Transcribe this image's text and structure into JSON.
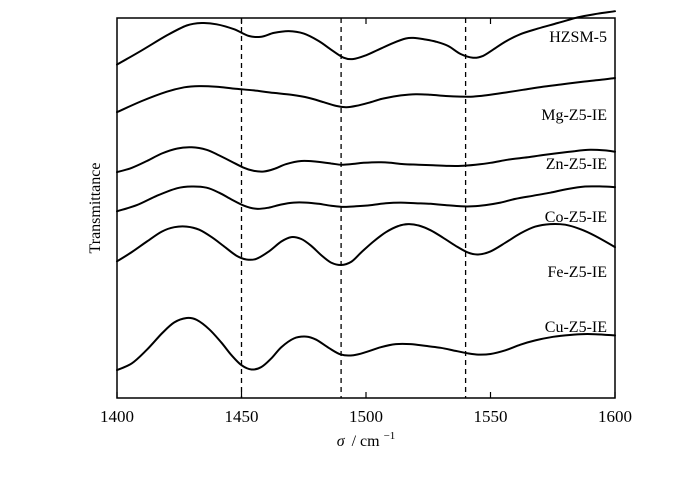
{
  "chart_data": {
    "type": "line",
    "title": "",
    "xlabel_symbol": "σ",
    "xlabel_unit": "/ cm",
    "xlabel_exponent": "−1",
    "ylabel": "Transmittance",
    "xlim": [
      1400,
      1600
    ],
    "xticks": [
      1400,
      1450,
      1500,
      1550,
      1600
    ],
    "xtick_labels": [
      "1400",
      "1450",
      "1500",
      "1550",
      "1600"
    ],
    "reference_lines_x": [
      1450,
      1490,
      1540
    ],
    "grid": false,
    "legend": "labels placed beside each curve at the right",
    "series": [
      {
        "name": "HZSM-5",
        "x": [
          1400,
          1410,
          1420,
          1428,
          1434,
          1440,
          1447,
          1453,
          1458,
          1463,
          1469,
          1475,
          1481,
          1486,
          1491,
          1495,
          1500,
          1505,
          1511,
          1516,
          1519,
          1523,
          1528,
          1533,
          1538,
          1543,
          1547,
          1551,
          1556,
          1562,
          1569,
          1577,
          1585,
          1593,
          1600
        ],
        "y": [
          1.2,
          3.5,
          5.9,
          7.5,
          7.9,
          7.7,
          6.9,
          5.8,
          5.7,
          6.3,
          6.6,
          6.2,
          5.0,
          3.6,
          2.3,
          2.1,
          2.7,
          3.6,
          4.7,
          5.4,
          5.5,
          5.3,
          4.9,
          4.2,
          2.9,
          2.3,
          2.6,
          3.6,
          4.9,
          6.1,
          7.0,
          7.9,
          8.8,
          9.4,
          9.8
        ]
      },
      {
        "name": "Mg-Z5-IE",
        "x": [
          1400,
          1410,
          1420,
          1427,
          1433,
          1440,
          1447,
          1455,
          1463,
          1470,
          1477,
          1483,
          1488,
          1492,
          1496,
          1501,
          1507,
          1514,
          1520,
          1526,
          1532,
          1538,
          1543,
          1548,
          1555,
          1563,
          1571,
          1579,
          1587,
          1594,
          1600
        ],
        "y": [
          0.3,
          2.1,
          3.6,
          4.3,
          4.5,
          4.4,
          4.1,
          3.8,
          3.4,
          3.1,
          2.6,
          1.9,
          1.3,
          1.1,
          1.3,
          1.8,
          2.5,
          3.0,
          3.2,
          3.1,
          2.9,
          2.8,
          2.8,
          3.0,
          3.4,
          3.9,
          4.4,
          4.8,
          5.2,
          5.5,
          5.8
        ]
      },
      {
        "name": "Zn-Z5-IE",
        "x": [
          1400,
          1406,
          1412,
          1418,
          1424,
          1430,
          1436,
          1441,
          1446,
          1451,
          1455,
          1459,
          1463,
          1468,
          1474,
          1480,
          1486,
          1490,
          1494,
          1499,
          1505,
          1510,
          1515,
          1521,
          1527,
          1533,
          1538,
          1544,
          1550,
          1557,
          1565,
          1572,
          1578,
          1584,
          1590,
          1596,
          1600
        ],
        "y": [
          0.3,
          1.0,
          2.1,
          3.3,
          4.1,
          4.3,
          3.9,
          3.0,
          2.0,
          1.0,
          0.5,
          0.4,
          0.8,
          1.6,
          2.1,
          2.0,
          1.7,
          1.5,
          1.6,
          1.8,
          1.9,
          1.8,
          1.6,
          1.5,
          1.4,
          1.3,
          1.3,
          1.5,
          1.8,
          2.3,
          2.7,
          3.1,
          3.4,
          3.7,
          3.9,
          3.8,
          3.6
        ]
      },
      {
        "name": "Co-Z5-IE",
        "x": [
          1400,
          1408,
          1416,
          1424,
          1430,
          1436,
          1441,
          1446,
          1451,
          1456,
          1461,
          1466,
          1471,
          1476,
          1481,
          1486,
          1491,
          1496,
          1502,
          1508,
          1514,
          1520,
          1526,
          1532,
          1538,
          1543,
          1548,
          1554,
          1560,
          1567,
          1574,
          1581,
          1588,
          1595,
          1600
        ],
        "y": [
          0.6,
          1.6,
          3.1,
          4.3,
          4.6,
          4.4,
          3.6,
          2.5,
          1.5,
          1.0,
          1.2,
          1.7,
          2.0,
          2.0,
          1.8,
          1.5,
          1.3,
          1.4,
          1.6,
          1.9,
          2.0,
          1.9,
          1.8,
          1.6,
          1.4,
          1.4,
          1.6,
          2.0,
          2.6,
          3.1,
          3.6,
          4.2,
          4.6,
          4.6,
          4.5
        ]
      },
      {
        "name": "Fe-Z5-IE",
        "x": [
          1400,
          1406,
          1412,
          1418,
          1423,
          1428,
          1433,
          1438,
          1443,
          1448,
          1452,
          1456,
          1461,
          1466,
          1470,
          1474,
          1478,
          1482,
          1486,
          1490,
          1494,
          1498,
          1503,
          1508,
          1513,
          1517,
          1521,
          1526,
          1531,
          1536,
          1541,
          1545,
          1550,
          1556,
          1562,
          1568,
          1574,
          1580,
          1586,
          1592,
          1600
        ],
        "y": [
          1.4,
          2.9,
          4.6,
          6.2,
          6.9,
          7.0,
          6.5,
          5.3,
          3.8,
          2.3,
          1.7,
          1.8,
          3.0,
          4.6,
          5.3,
          5.0,
          3.9,
          2.4,
          1.2,
          0.8,
          1.3,
          2.8,
          4.6,
          6.1,
          7.1,
          7.4,
          7.2,
          6.4,
          5.2,
          3.9,
          2.8,
          2.5,
          3.0,
          4.4,
          5.9,
          7.0,
          7.4,
          7.3,
          6.6,
          5.5,
          3.7
        ]
      },
      {
        "name": "Cu-Z5-IE",
        "x": [
          1400,
          1406,
          1412,
          1418,
          1423,
          1428,
          1432,
          1437,
          1442,
          1446,
          1450,
          1454,
          1458,
          1462,
          1466,
          1471,
          1476,
          1480,
          1485,
          1490,
          1495,
          1500,
          1506,
          1512,
          1518,
          1524,
          1530,
          1536,
          1541,
          1545,
          1550,
          1556,
          1562,
          1568,
          1574,
          1580,
          1586,
          1592,
          1600
        ],
        "y": [
          2.4,
          3.5,
          5.7,
          8.3,
          10.1,
          10.8,
          10.5,
          9.0,
          6.8,
          4.8,
          3.2,
          2.5,
          2.9,
          4.3,
          6.1,
          7.5,
          7.8,
          7.3,
          6.0,
          4.9,
          4.8,
          5.3,
          6.1,
          6.6,
          6.6,
          6.3,
          6.0,
          5.5,
          5.1,
          4.9,
          5.0,
          5.6,
          6.5,
          7.2,
          7.7,
          8.0,
          8.2,
          8.2,
          8.0
        ]
      }
    ]
  }
}
